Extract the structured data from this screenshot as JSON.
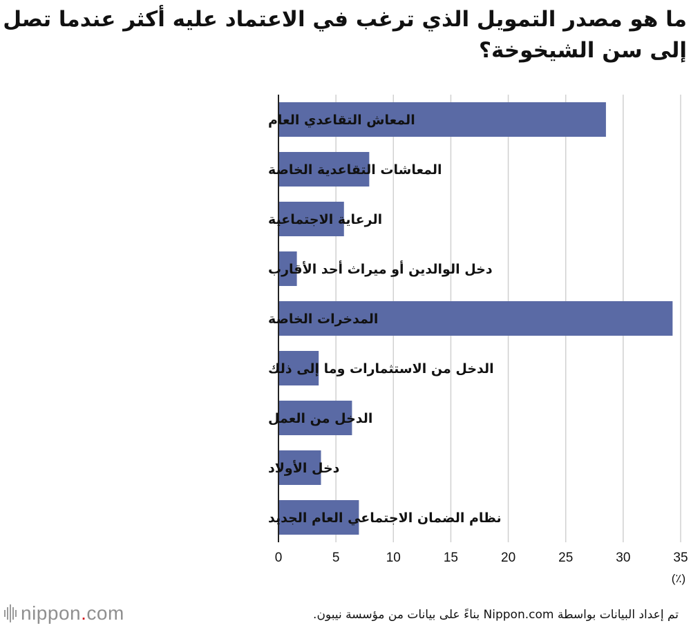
{
  "title": "ما هو مصدر التمويل الذي ترغب في الاعتماد عليه أكثر عندما تصل إلى سن الشيخوخة؟",
  "source": "تم إعداد البيانات بواسطة Nippon.com بناءً على بيانات من مؤسسة نيبون.",
  "logo": {
    "name": "nippon",
    "dot": ".",
    "suffix": "com"
  },
  "colors": {
    "bar": "#5a6aa5",
    "grid": "#d0d0d0",
    "axis": "#222222"
  },
  "chart_data": {
    "type": "bar",
    "orientation": "horizontal",
    "categories": [
      "المعاش التقاعدي العام",
      "المعاشات التقاعدية الخاصة",
      "الرعاية الاجتماعية",
      "دخل الوالدين أو ميراث أحد الأقارب",
      "المدخرات الخاصة",
      "الدخل من الاستثمارات وما إلى ذلك",
      "الدخل من العمل",
      "دخل الأولاد",
      "نظام الضمان الاجتماعي العام الجديد"
    ],
    "values": [
      28.5,
      7.9,
      5.7,
      1.6,
      34.3,
      3.5,
      6.4,
      3.7,
      7.0
    ],
    "xlim": [
      0,
      35
    ],
    "xticks": [
      0,
      5,
      10,
      15,
      20,
      25,
      30,
      35
    ],
    "xunit": "(٪)",
    "grid": true
  }
}
